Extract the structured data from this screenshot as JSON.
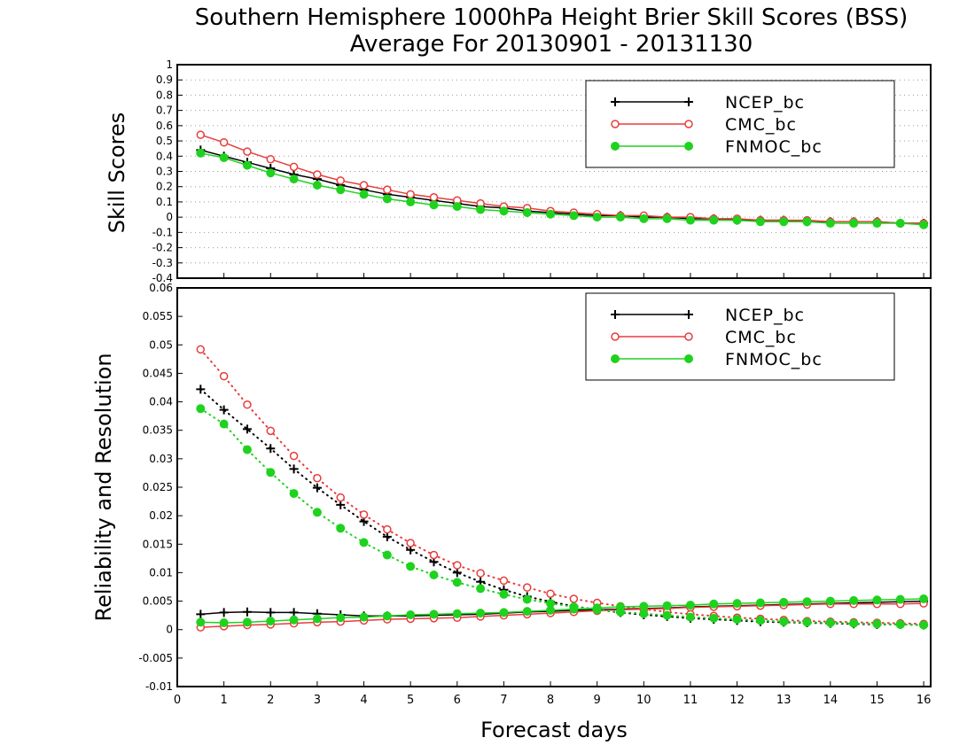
{
  "title": {
    "line1": "Southern Hemisphere 1000hPa Height Brier Skill Scores (BSS)",
    "line2": "Average For 20130901 - 20131130"
  },
  "colors": {
    "NCEP_bc": "#000000",
    "CMC_bc": "#e83c3c",
    "FNMOC_bc": "#1ed21e"
  },
  "chart_data": [
    {
      "type": "line",
      "panel": "top",
      "ylabel": "Skill Scores",
      "xlabel": "",
      "xlim": [
        0,
        16.15
      ],
      "ylim": [
        -0.4,
        1
      ],
      "yticks": [
        "1",
        "0.9",
        "0.8",
        "0.7",
        "0.6",
        "0.5",
        "0.4",
        "0.3",
        "0.2",
        "0.1",
        "0",
        "-0.1",
        "-0.2",
        "-0.3",
        "-0.4"
      ],
      "grid": true,
      "legend": {
        "position": "top-right",
        "entries": [
          "NCEP_bc",
          "CMC_bc",
          "FNMOC_bc"
        ]
      },
      "x": [
        0.5,
        1,
        1.5,
        2,
        2.5,
        3,
        3.5,
        4,
        4.5,
        5,
        5.5,
        6,
        6.5,
        7,
        7.5,
        8,
        8.5,
        9,
        9.5,
        10,
        10.5,
        11,
        11.5,
        12,
        12.5,
        13,
        13.5,
        14,
        14.5,
        15,
        15.5,
        16
      ],
      "series": [
        {
          "name": "NCEP_bc",
          "marker": "plus",
          "style": "solid",
          "values": [
            0.44,
            0.4,
            0.36,
            0.32,
            0.28,
            0.25,
            0.21,
            0.18,
            0.15,
            0.13,
            0.11,
            0.09,
            0.07,
            0.06,
            0.04,
            0.03,
            0.02,
            0.01,
            0.01,
            0.0,
            0.0,
            -0.01,
            -0.01,
            -0.02,
            -0.02,
            -0.02,
            -0.03,
            -0.03,
            -0.03,
            -0.03,
            -0.04,
            -0.04
          ]
        },
        {
          "name": "CMC_bc",
          "marker": "open-circle",
          "style": "solid",
          "values": [
            0.54,
            0.49,
            0.43,
            0.38,
            0.33,
            0.28,
            0.24,
            0.21,
            0.18,
            0.15,
            0.13,
            0.11,
            0.09,
            0.07,
            0.06,
            0.04,
            0.03,
            0.02,
            0.01,
            0.01,
            0.0,
            0.0,
            -0.01,
            -0.01,
            -0.02,
            -0.02,
            -0.02,
            -0.03,
            -0.03,
            -0.03,
            -0.04,
            -0.04
          ]
        },
        {
          "name": "FNMOC_bc",
          "marker": "filled-circle",
          "style": "solid",
          "values": [
            0.42,
            0.39,
            0.34,
            0.29,
            0.25,
            0.21,
            0.18,
            0.15,
            0.12,
            0.1,
            0.08,
            0.07,
            0.05,
            0.04,
            0.03,
            0.02,
            0.01,
            0.0,
            0.0,
            -0.01,
            -0.01,
            -0.02,
            -0.02,
            -0.02,
            -0.03,
            -0.03,
            -0.03,
            -0.04,
            -0.04,
            -0.04,
            -0.04,
            -0.05
          ]
        }
      ]
    },
    {
      "type": "line",
      "panel": "bottom",
      "ylabel": "Reliability and Resolution",
      "xlabel": "Forecast days",
      "xlim": [
        0,
        16.15
      ],
      "ylim": [
        -0.01,
        0.06
      ],
      "yticks": [
        "0.06",
        "0.055",
        "0.05",
        "0.045",
        "0.04",
        "0.035",
        "0.03",
        "0.025",
        "0.02",
        "0.015",
        "0.01",
        "0.005",
        "0",
        "-0.005",
        "-0.01"
      ],
      "xticks": [
        "0",
        "1",
        "2",
        "3",
        "4",
        "5",
        "6",
        "7",
        "8",
        "9",
        "10",
        "11",
        "12",
        "13",
        "14",
        "15",
        "16"
      ],
      "grid": false,
      "legend": {
        "position": "top-right",
        "entries": [
          "NCEP_bc",
          "CMC_bc",
          "FNMOC_bc"
        ]
      },
      "x": [
        0.5,
        1,
        1.5,
        2,
        2.5,
        3,
        3.5,
        4,
        4.5,
        5,
        5.5,
        6,
        6.5,
        7,
        7.5,
        8,
        8.5,
        9,
        9.5,
        10,
        10.5,
        11,
        11.5,
        12,
        12.5,
        13,
        13.5,
        14,
        14.5,
        15,
        15.5,
        16
      ],
      "series": [
        {
          "name": "NCEP_bc",
          "component": "reliability",
          "marker": "plus",
          "style": "solid",
          "values": [
            0.0027,
            0.003,
            0.0031,
            0.003,
            0.003,
            0.0028,
            0.0026,
            0.0024,
            0.0024,
            0.0024,
            0.0025,
            0.0026,
            0.0027,
            0.0029,
            0.0031,
            0.0032,
            0.0034,
            0.0035,
            0.0036,
            0.0037,
            0.0038,
            0.004,
            0.0041,
            0.0042,
            0.0043,
            0.0044,
            0.0045,
            0.0046,
            0.0047,
            0.0048,
            0.0049,
            0.005
          ]
        },
        {
          "name": "NCEP_bc",
          "component": "resolution",
          "marker": "plus",
          "style": "dotted",
          "values": [
            0.0422,
            0.0386,
            0.0352,
            0.0318,
            0.0282,
            0.0249,
            0.0219,
            0.019,
            0.0163,
            0.014,
            0.0119,
            0.01,
            0.0084,
            0.007,
            0.0058,
            0.0049,
            0.0041,
            0.0035,
            0.003,
            0.0026,
            0.0023,
            0.002,
            0.0018,
            0.0016,
            0.0014,
            0.0013,
            0.0012,
            0.0011,
            0.001,
            0.0009,
            0.0009,
            0.0008
          ]
        },
        {
          "name": "CMC_bc",
          "component": "reliability",
          "marker": "open-circle",
          "style": "solid",
          "values": [
            0.0004,
            0.0006,
            0.0008,
            0.0009,
            0.0011,
            0.0013,
            0.0014,
            0.0016,
            0.0018,
            0.0019,
            0.002,
            0.0021,
            0.0023,
            0.0025,
            0.0027,
            0.0029,
            0.0031,
            0.0033,
            0.0035,
            0.0036,
            0.0037,
            0.0039,
            0.004,
            0.0041,
            0.0042,
            0.0043,
            0.0044,
            0.0045,
            0.0045,
            0.0045,
            0.0045,
            0.0046
          ]
        },
        {
          "name": "CMC_bc",
          "component": "resolution",
          "marker": "open-circle",
          "style": "dotted",
          "values": [
            0.0492,
            0.0445,
            0.0395,
            0.0349,
            0.0305,
            0.0266,
            0.0232,
            0.0202,
            0.0176,
            0.0152,
            0.0131,
            0.0113,
            0.0099,
            0.0086,
            0.0074,
            0.0063,
            0.0054,
            0.0047,
            0.0041,
            0.0036,
            0.0031,
            0.0027,
            0.0024,
            0.0021,
            0.0019,
            0.0017,
            0.0015,
            0.0014,
            0.0013,
            0.0012,
            0.0011,
            0.001
          ]
        },
        {
          "name": "FNMOC_bc",
          "component": "reliability",
          "marker": "filled-circle",
          "style": "solid",
          "values": [
            0.0013,
            0.0012,
            0.0013,
            0.0015,
            0.0017,
            0.0019,
            0.0021,
            0.0022,
            0.0024,
            0.0026,
            0.0027,
            0.0028,
            0.0029,
            0.003,
            0.0032,
            0.0034,
            0.0036,
            0.0038,
            0.004,
            0.0041,
            0.0042,
            0.0043,
            0.0045,
            0.0046,
            0.0047,
            0.0048,
            0.0049,
            0.005,
            0.0051,
            0.0052,
            0.0053,
            0.0054
          ]
        },
        {
          "name": "FNMOC_bc",
          "component": "resolution",
          "marker": "filled-circle",
          "style": "dotted",
          "values": [
            0.0388,
            0.0361,
            0.0316,
            0.0276,
            0.0239,
            0.0206,
            0.0178,
            0.0153,
            0.0131,
            0.0111,
            0.0096,
            0.0083,
            0.0072,
            0.0062,
            0.0053,
            0.0046,
            0.004,
            0.0035,
            0.0031,
            0.0028,
            0.0025,
            0.0022,
            0.002,
            0.0018,
            0.0016,
            0.0014,
            0.0013,
            0.0012,
            0.0011,
            0.001,
            0.0009,
            0.0008
          ]
        }
      ]
    }
  ]
}
